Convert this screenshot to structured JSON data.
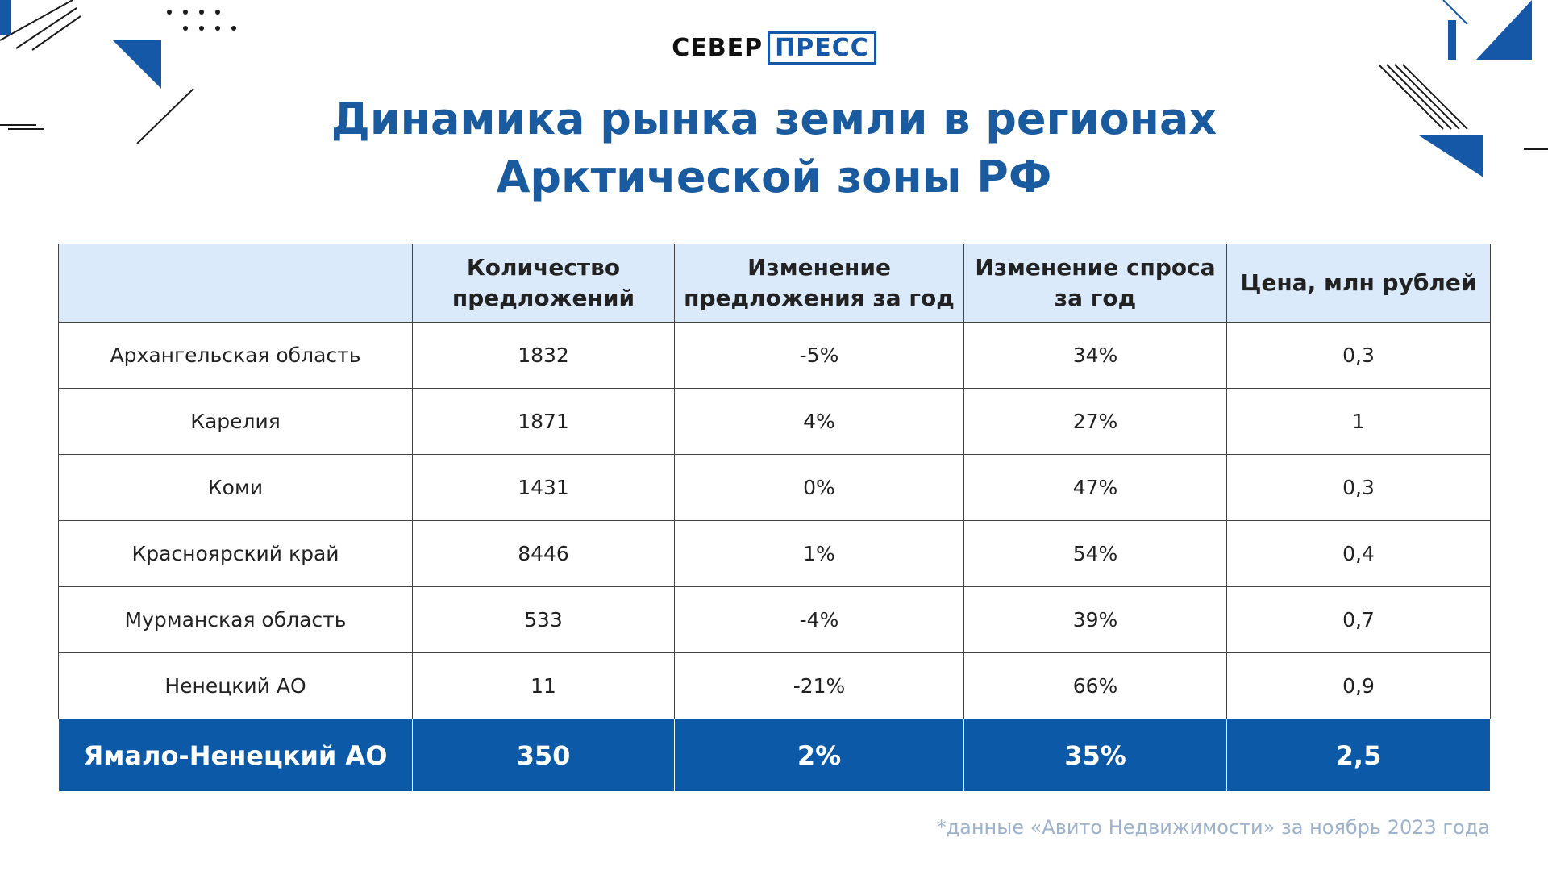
{
  "header": {
    "logo_left": "СЕВЕР",
    "logo_right": "ПРЕСС"
  },
  "title": [
    "Динамика рынка земли в регионах",
    "Арктической зоны РФ"
  ],
  "table": {
    "columns": [
      "Количество предложений",
      "Изменение предложения за год",
      "Изменение спроса за год",
      "Цена, млн рублей"
    ],
    "rows": [
      [
        "Архангельская область",
        "1832",
        "-5%",
        "34%",
        "0,3"
      ],
      [
        "Карелия",
        "1871",
        "4%",
        "27%",
        "1"
      ],
      [
        "Коми",
        "1431",
        "0%",
        "47%",
        "0,3"
      ],
      [
        "Красноярский край",
        "8446",
        "1%",
        "54%",
        "0,4"
      ],
      [
        "Мурманская область",
        "533",
        "-4%",
        "39%",
        "0,7"
      ],
      [
        "Ненецкий АО",
        "11",
        "-21%",
        "66%",
        "0,9"
      ],
      [
        "Ямало-Ненецкий АО",
        "350",
        "2%",
        "35%",
        "2,5"
      ]
    ]
  },
  "footnote": "*данные «Авито Недвижимости» за ноябрь 2023 года"
}
